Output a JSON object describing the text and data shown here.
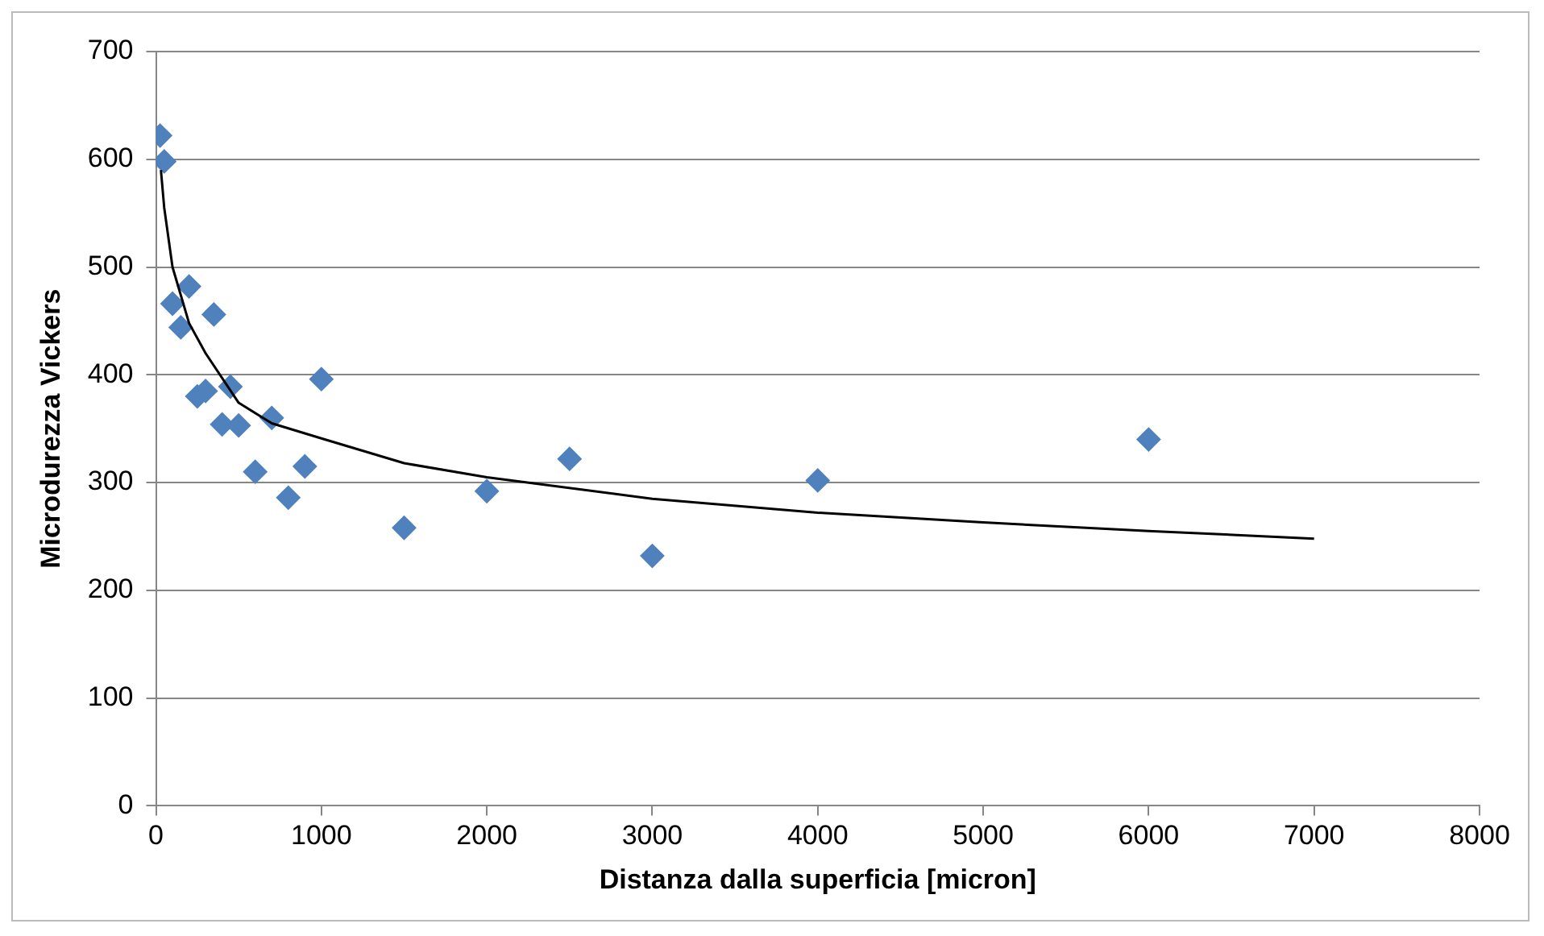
{
  "chart_data": {
    "type": "scatter",
    "xlabel": "Distanza dalla superficia [micron]",
    "ylabel": "Microdurezza Vickers",
    "xlim": [
      0,
      8000
    ],
    "xticks": [
      0,
      1000,
      2000,
      3000,
      4000,
      5000,
      6000,
      7000,
      8000
    ],
    "ylim": [
      0,
      700
    ],
    "yticks": [
      0,
      100,
      200,
      300,
      400,
      500,
      600,
      700
    ],
    "grid": "y",
    "legend": false,
    "marker": "diamond",
    "series": [
      {
        "type": "scatter",
        "color": "#4f81bd",
        "x": [
          25,
          50,
          100,
          150,
          200,
          250,
          300,
          350,
          400,
          450,
          500,
          600,
          700,
          800,
          900,
          1000,
          1500,
          2000,
          2500,
          3000,
          4000,
          6000
        ],
        "values": [
          622,
          598,
          466,
          444,
          482,
          380,
          385,
          456,
          354,
          389,
          353,
          310,
          360,
          286,
          315,
          396,
          258,
          292,
          322,
          232,
          302,
          340
        ]
      },
      {
        "type": "line",
        "color": "#000000",
        "marker": "none",
        "x": [
          30,
          50,
          100,
          200,
          300,
          500,
          700,
          1000,
          1500,
          2000,
          3000,
          4000,
          5000,
          6000,
          7000
        ],
        "values": [
          590,
          555,
          500,
          448,
          420,
          374,
          355,
          341,
          318,
          305,
          285,
          272,
          263,
          255,
          248
        ]
      }
    ]
  }
}
